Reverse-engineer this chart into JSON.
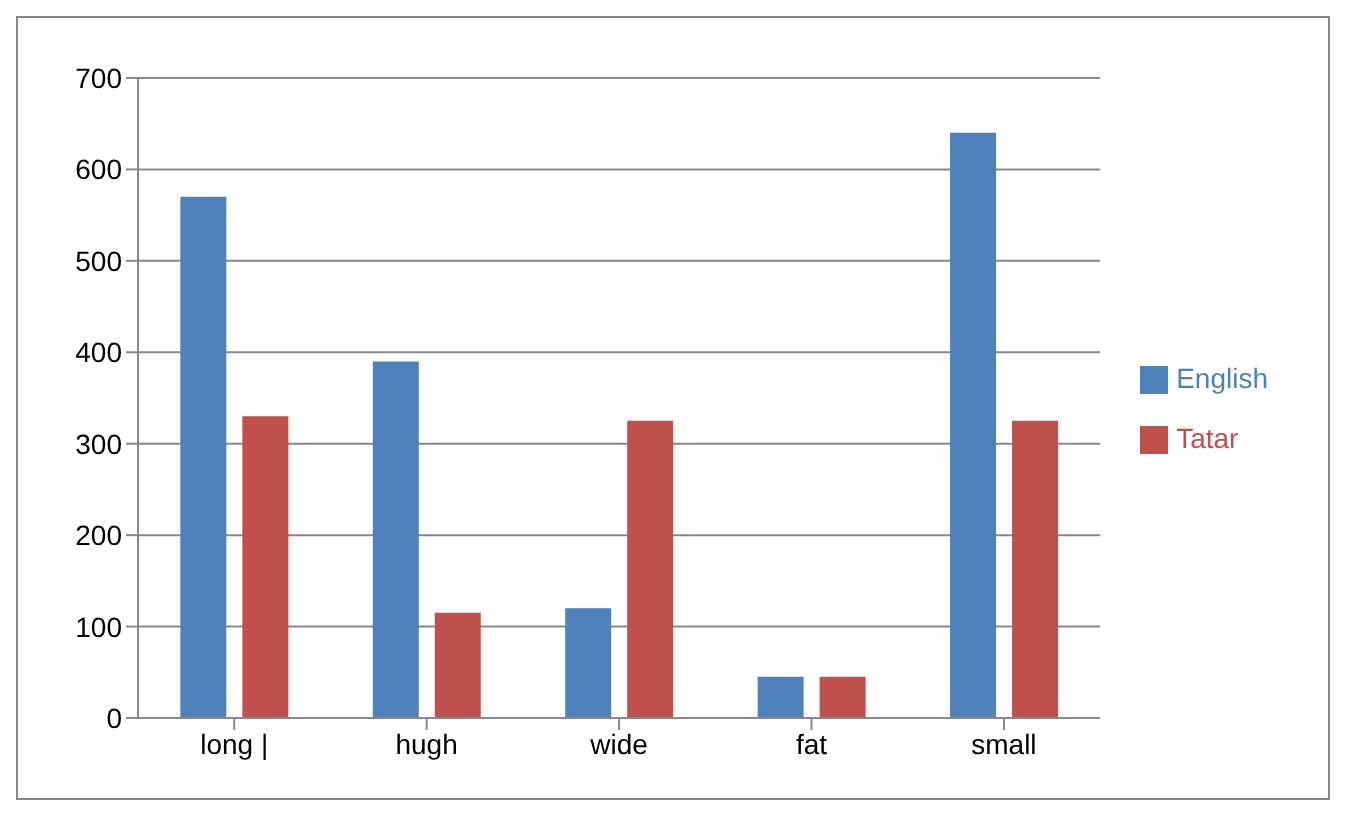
{
  "chart_data": {
    "type": "bar",
    "categories": [
      "long |",
      "hugh",
      "wide",
      "fat",
      "small"
    ],
    "series": [
      {
        "name": "English",
        "color": "#4f81bd",
        "values": [
          570,
          390,
          120,
          45,
          640
        ]
      },
      {
        "name": "Tatar",
        "color": "#c0504d",
        "values": [
          330,
          115,
          325,
          45,
          325
        ]
      }
    ],
    "ylim": [
      0,
      700
    ],
    "yticks": [
      0,
      100,
      200,
      300,
      400,
      500,
      600,
      700
    ],
    "grid": "y",
    "legend": "right"
  }
}
